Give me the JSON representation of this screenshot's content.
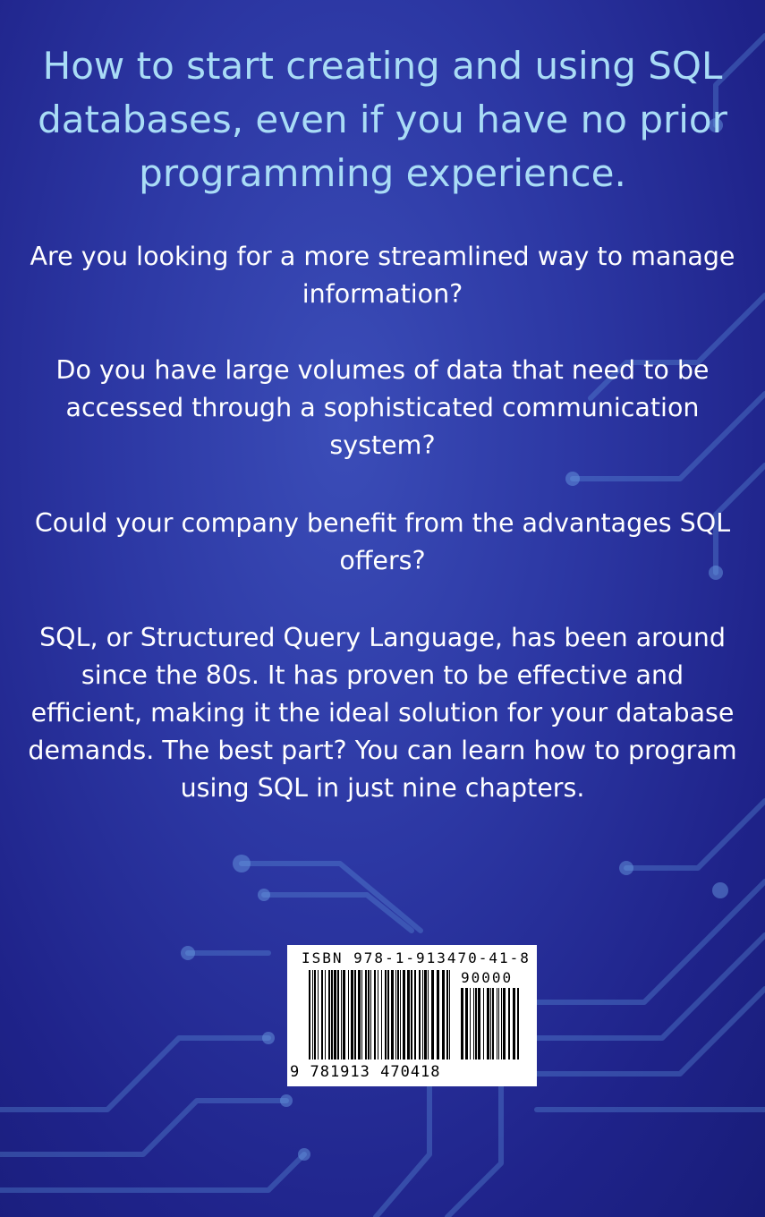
{
  "headline": "How to start creating and using SQL databases, even if you have no prior programming experience.",
  "paragraphs": [
    "Are you looking for a more streamlined way to manage information?",
    "Do you have large volumes of data that need to be accessed through a sophisticated communication system?",
    "Could your company benefit from the advantages SQL offers?",
    "SQL, or Structured Query Language, has been around since the 80s. It has proven to be effective and efficient, making it the ideal solution for your database demands. The best part? You can learn how to program using SQL in just nine chapters."
  ],
  "barcode": {
    "isbn_label": "ISBN 978-1-913470-41-8",
    "price_code": "90000",
    "digits": "9 781913 470418"
  },
  "colors": {
    "background": "#2c37a3",
    "headline": "#a9dcf6",
    "body_text": "#ffffff",
    "circuit_lines": "#5a8fd6"
  }
}
